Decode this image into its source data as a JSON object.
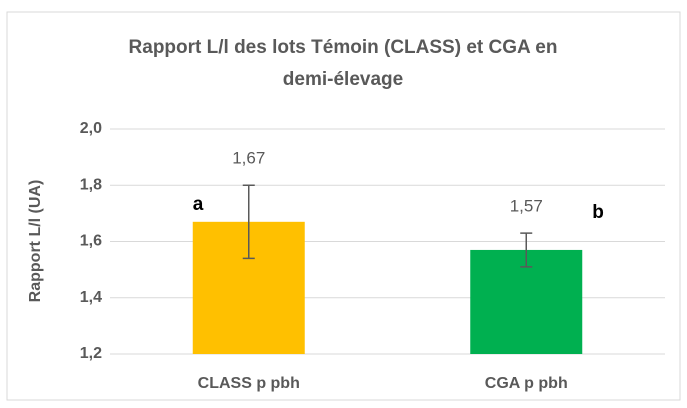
{
  "chart_data": {
    "type": "bar",
    "title": "Rapport L/l des lots Témoin (CLASS) et CGA en",
    "subtitle": "demi-élevage",
    "ylabel": "Rapport L/l (UA)",
    "categories": [
      "CLASS p pbh",
      "CGA p pbh"
    ],
    "values": [
      1.67,
      1.57
    ],
    "value_labels": [
      "1,67",
      "1,57"
    ],
    "errors": [
      0.13,
      0.06
    ],
    "colors": [
      "#ffc000",
      "#00b050"
    ],
    "annotations": [
      "a",
      "b"
    ],
    "ylim": [
      1.2,
      2.0
    ],
    "yticks": [
      {
        "value": 1.2,
        "label": "1,2"
      },
      {
        "value": 1.4,
        "label": "1,4"
      },
      {
        "value": 1.6,
        "label": "1,6"
      },
      {
        "value": 1.8,
        "label": "1,8"
      },
      {
        "value": 2.0,
        "label": "2,0"
      }
    ],
    "grid": true
  }
}
